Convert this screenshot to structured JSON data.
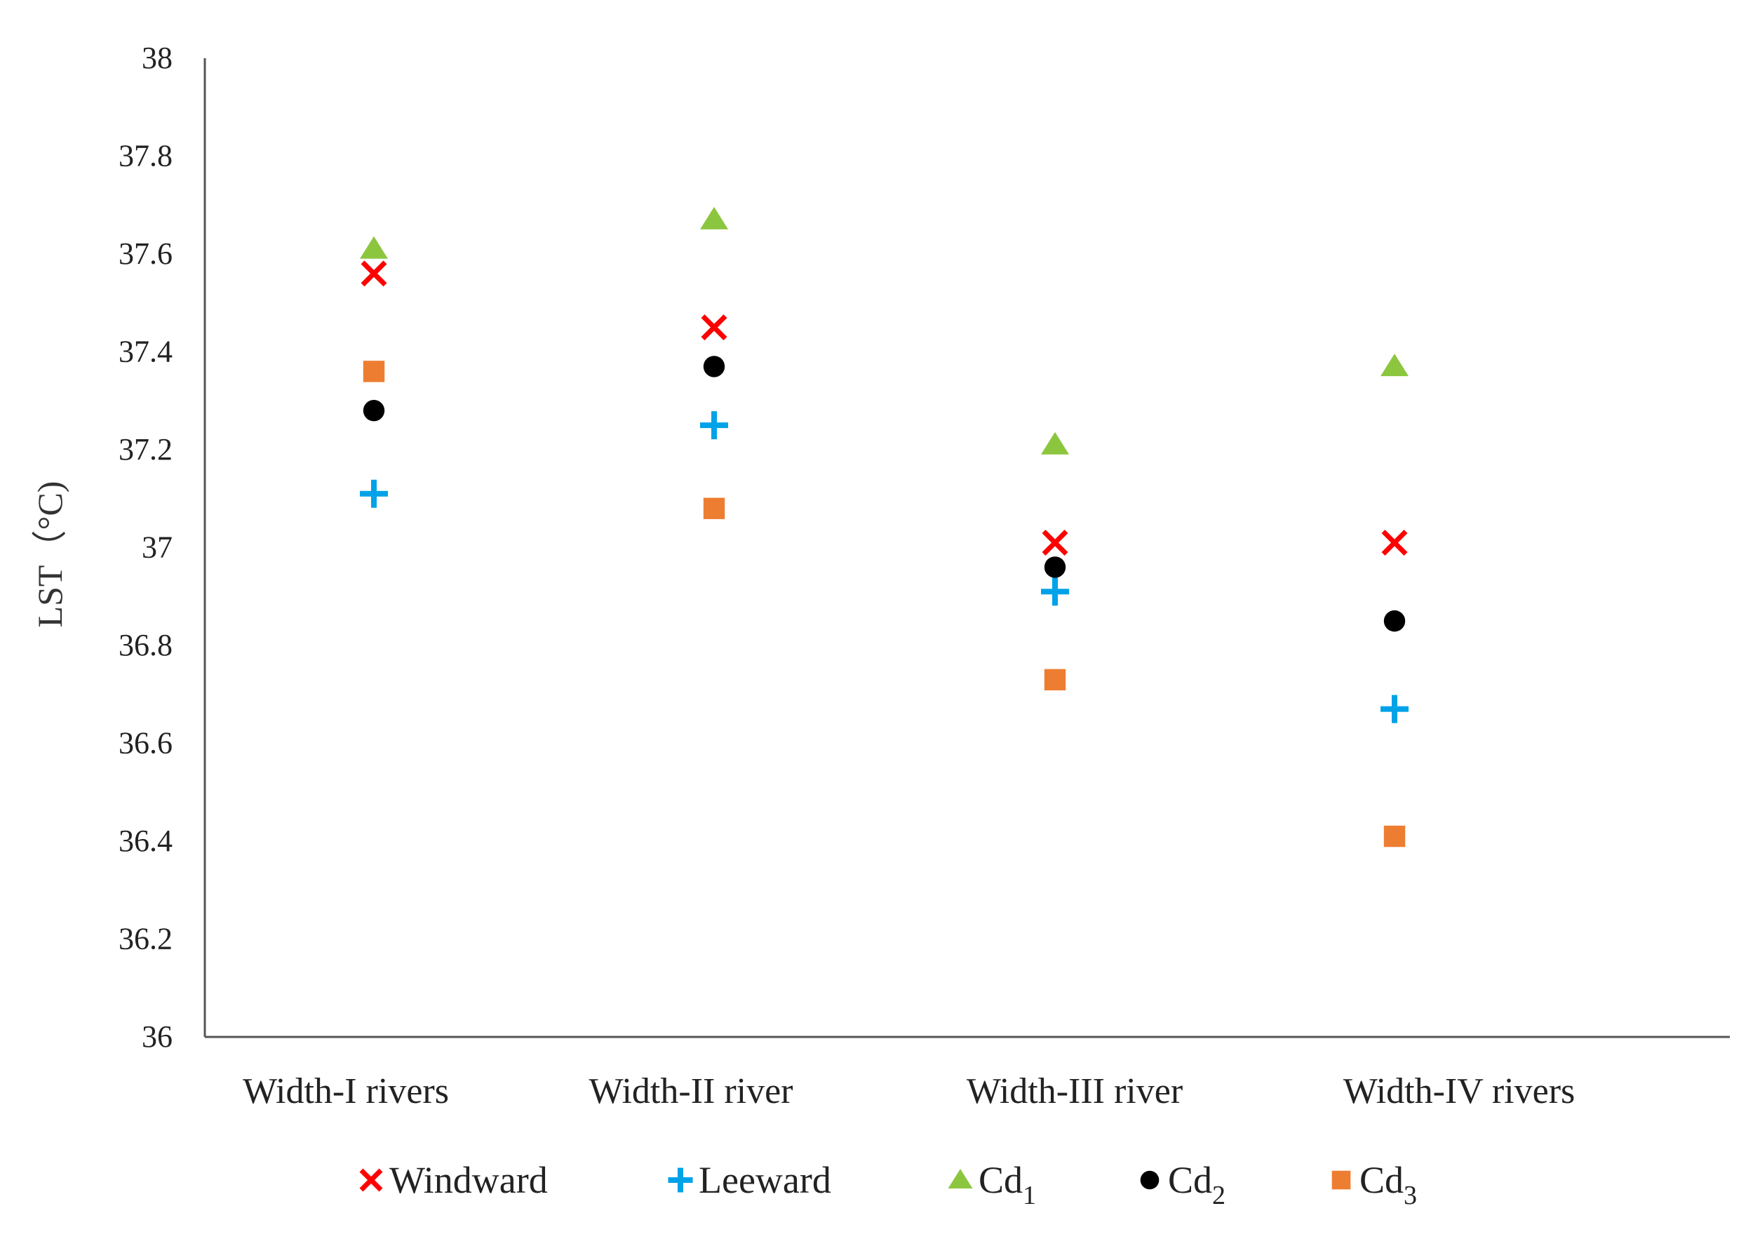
{
  "chart_data": {
    "type": "scatter",
    "title": "",
    "xlabel": "",
    "ylabel": "LST（°C)",
    "ylim": [
      36,
      38
    ],
    "y_ticks": [
      "36",
      "36.2",
      "36.4",
      "36.6",
      "36.8",
      "37",
      "37.2",
      "37.4",
      "37.6",
      "37.8",
      "38"
    ],
    "categories": [
      "Width-I rivers",
      "Width-II river",
      "Width-III river",
      "Width-IV rivers"
    ],
    "grid": false,
    "legend_position": "bottom",
    "series": [
      {
        "name": "Windward",
        "legend_main": "Windward",
        "legend_sub": "",
        "marker": "x",
        "color": "#ff0000",
        "values": [
          37.56,
          37.45,
          37.01,
          37.01
        ]
      },
      {
        "name": "Leeward",
        "legend_main": "Leeward",
        "legend_sub": "",
        "marker": "plus",
        "color": "#00a2e8",
        "values": [
          37.11,
          37.25,
          36.91,
          36.67
        ]
      },
      {
        "name": "Cd1",
        "legend_main": "Cd",
        "legend_sub": "1",
        "marker": "triangle",
        "color": "#8cc63f",
        "values": [
          37.61,
          37.67,
          37.21,
          37.37
        ]
      },
      {
        "name": "Cd2",
        "legend_main": "Cd",
        "legend_sub": "2",
        "marker": "circle",
        "color": "#000000",
        "values": [
          37.28,
          37.37,
          36.96,
          36.85
        ]
      },
      {
        "name": "Cd3",
        "legend_main": "Cd",
        "legend_sub": "3",
        "marker": "square",
        "color": "#ed7d31",
        "values": [
          37.36,
          37.08,
          36.73,
          36.41
        ]
      }
    ]
  }
}
